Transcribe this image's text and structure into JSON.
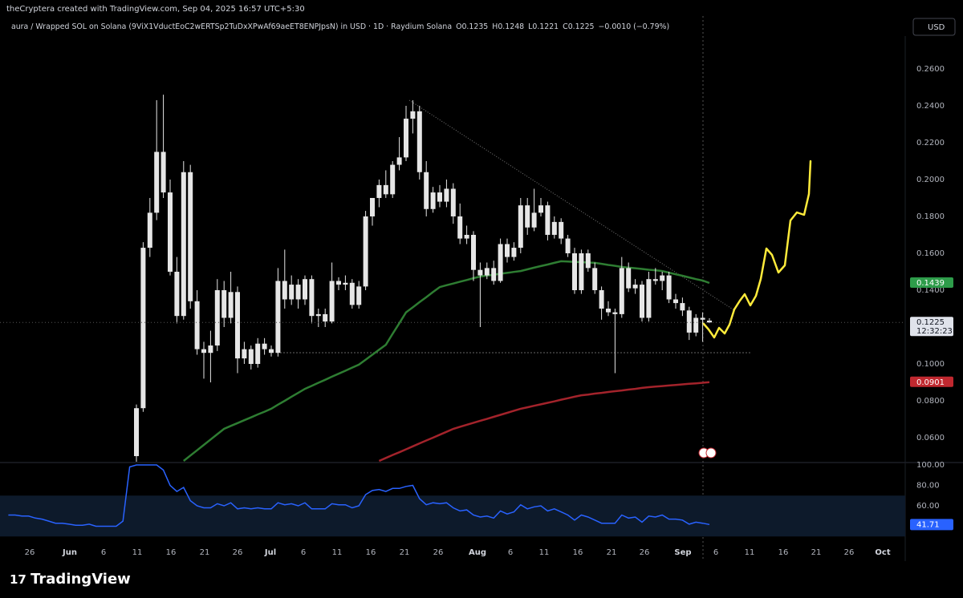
{
  "header": {
    "credit": "theCryptera created with TradingView.com, Sep 04, 2025 16:57 UTC+5:30",
    "symbol": "aura / Wrapped SOL on Solana (9ViX1VductEoC2wERTSp2TuDxXPwAf69aeET8ENPJpsN) in USD · 1D · Raydium Solana",
    "ohlc": [
      "O0.1235",
      "H0.1248",
      "L0.1221",
      "C0.1225",
      "−0.0010 (−0.79%)"
    ],
    "currency": "USD",
    "brand": "TradingView"
  },
  "chart_data": {
    "type": "candlestick",
    "color": "#e6e6e6",
    "x": [
      "May 22",
      "May 23",
      "May 24",
      "May 25",
      "May 26",
      "May 27",
      "May 28",
      "May 29",
      "May 30",
      "May 31",
      "Jun 1",
      "Jun 2",
      "Jun 3",
      "Jun 4",
      "Jun 5",
      "Jun 6",
      "Jun 7",
      "Jun 8",
      "Jun 9",
      "Jun 10",
      "Jun 11",
      "Jun 12",
      "Jun 13",
      "Jun 14",
      "Jun 15",
      "Jun 16",
      "Jun 17",
      "Jun 18",
      "Jun 19",
      "Jun 20",
      "Jun 21",
      "Jun 22",
      "Jun 23",
      "Jun 24",
      "Jun 25",
      "Jun 26",
      "Jun 27",
      "Jun 28",
      "Jun 29",
      "Jun 30",
      "Jul 1",
      "Jul 2",
      "Jul 3",
      "Jul 4",
      "Jul 5",
      "Jul 6",
      "Jul 7",
      "Jul 8",
      "Jul 9",
      "Jul 10",
      "Jul 11",
      "Jul 12",
      "Jul 13",
      "Jul 14",
      "Jul 15",
      "Jul 16",
      "Jul 17",
      "Jul 18",
      "Jul 19",
      "Jul 20",
      "Jul 21",
      "Jul 22",
      "Jul 23",
      "Jul 24",
      "Jul 25",
      "Jul 26",
      "Jul 27",
      "Jul 28",
      "Jul 29",
      "Jul 30",
      "Jul 31",
      "Aug 1",
      "Aug 2",
      "Aug 3",
      "Aug 4",
      "Aug 5",
      "Aug 6",
      "Aug 7",
      "Aug 8",
      "Aug 9",
      "Aug 10",
      "Aug 11",
      "Aug 12",
      "Aug 13",
      "Aug 14",
      "Aug 15",
      "Aug 16",
      "Aug 17",
      "Aug 18",
      "Aug 19",
      "Aug 20",
      "Aug 21",
      "Aug 22",
      "Aug 23",
      "Aug 24",
      "Aug 25",
      "Aug 26",
      "Aug 27",
      "Aug 28",
      "Aug 29",
      "Aug 30",
      "Aug 31",
      "Sep 1",
      "Sep 2",
      "Sep 3"
    ],
    "open": [
      null,
      null,
      null,
      null,
      null,
      null,
      null,
      null,
      null,
      null,
      null,
      null,
      null,
      null,
      null,
      null,
      null,
      null,
      null,
      0.05,
      0.076,
      0.163,
      0.182,
      0.215,
      0.193,
      0.15,
      0.126,
      0.204,
      0.134,
      0.108,
      0.106,
      0.11,
      0.14,
      0.125,
      0.139,
      0.103,
      0.108,
      0.1,
      0.111,
      0.108,
      0.106,
      0.145,
      0.135,
      0.143,
      0.135,
      0.146,
      0.126,
      0.127,
      0.123,
      0.145,
      0.143,
      0.144,
      0.132,
      0.142,
      0.18,
      0.19,
      0.197,
      0.192,
      0.208,
      0.212,
      0.233,
      0.237,
      0.204,
      0.184,
      0.193,
      0.188,
      0.195,
      0.18,
      0.168,
      0.17,
      0.151,
      0.148,
      0.152,
      0.145,
      0.165,
      0.158,
      0.163,
      0.186,
      0.174,
      0.182,
      0.186,
      0.17,
      0.177,
      0.168,
      0.16,
      0.14,
      0.16,
      0.152,
      0.14,
      0.13,
      0.128,
      0.127,
      0.152,
      0.141,
      0.143,
      0.125,
      0.146,
      0.145,
      0.148,
      0.135,
      0.133,
      0.129,
      0.117,
      0.125,
      0.1235
    ],
    "high": [
      null,
      null,
      null,
      null,
      null,
      null,
      null,
      null,
      null,
      null,
      null,
      null,
      null,
      null,
      null,
      null,
      null,
      null,
      null,
      0.078,
      0.166,
      0.19,
      0.243,
      0.246,
      0.2,
      0.158,
      0.21,
      0.208,
      0.14,
      0.112,
      0.118,
      0.146,
      0.145,
      0.15,
      0.142,
      0.112,
      0.11,
      0.114,
      0.114,
      0.11,
      0.152,
      0.162,
      0.148,
      0.146,
      0.148,
      0.148,
      0.13,
      0.13,
      0.155,
      0.147,
      0.148,
      0.146,
      0.145,
      0.183,
      0.19,
      0.2,
      0.205,
      0.21,
      0.223,
      0.24,
      0.243,
      0.24,
      0.21,
      0.196,
      0.197,
      0.2,
      0.198,
      0.187,
      0.175,
      0.172,
      0.155,
      0.155,
      0.156,
      0.168,
      0.168,
      0.166,
      0.19,
      0.19,
      0.195,
      0.19,
      0.188,
      0.18,
      0.179,
      0.17,
      0.163,
      0.162,
      0.162,
      0.155,
      0.142,
      0.134,
      0.13,
      0.158,
      0.155,
      0.146,
      0.145,
      0.15,
      0.152,
      0.15,
      0.15,
      0.138,
      0.136,
      0.131,
      0.127,
      0.128,
      0.1248
    ],
    "low": [
      null,
      null,
      null,
      null,
      null,
      null,
      null,
      null,
      null,
      null,
      null,
      null,
      null,
      null,
      null,
      null,
      null,
      null,
      null,
      0.046,
      0.074,
      0.158,
      0.178,
      0.19,
      0.148,
      0.122,
      0.124,
      0.13,
      0.105,
      0.092,
      0.09,
      0.107,
      0.12,
      0.122,
      0.095,
      0.1,
      0.097,
      0.098,
      0.105,
      0.104,
      0.104,
      0.13,
      0.132,
      0.13,
      0.132,
      0.122,
      0.12,
      0.12,
      0.122,
      0.14,
      0.14,
      0.13,
      0.13,
      0.14,
      0.175,
      0.185,
      0.19,
      0.19,
      0.205,
      0.21,
      0.225,
      0.2,
      0.18,
      0.182,
      0.185,
      0.185,
      0.176,
      0.165,
      0.165,
      0.145,
      0.12,
      0.146,
      0.143,
      0.144,
      0.155,
      0.156,
      0.16,
      0.17,
      0.172,
      0.18,
      0.167,
      0.168,
      0.165,
      0.158,
      0.138,
      0.138,
      0.15,
      0.138,
      0.124,
      0.126,
      0.095,
      0.125,
      0.139,
      0.138,
      0.123,
      0.123,
      0.143,
      0.14,
      0.133,
      0.13,
      0.126,
      0.113,
      0.115,
      0.112,
      0.1221
    ],
    "close": [
      null,
      null,
      null,
      null,
      null,
      null,
      null,
      null,
      null,
      null,
      null,
      null,
      null,
      null,
      null,
      null,
      null,
      null,
      null,
      0.076,
      0.163,
      0.182,
      0.215,
      0.193,
      0.15,
      0.126,
      0.204,
      0.134,
      0.108,
      0.106,
      0.11,
      0.14,
      0.125,
      0.139,
      0.103,
      0.108,
      0.1,
      0.111,
      0.108,
      0.106,
      0.145,
      0.135,
      0.143,
      0.135,
      0.146,
      0.126,
      0.127,
      0.123,
      0.145,
      0.143,
      0.144,
      0.132,
      0.142,
      0.18,
      0.19,
      0.197,
      0.192,
      0.208,
      0.212,
      0.233,
      0.237,
      0.204,
      0.184,
      0.193,
      0.188,
      0.195,
      0.18,
      0.168,
      0.17,
      0.151,
      0.148,
      0.152,
      0.145,
      0.165,
      0.158,
      0.163,
      0.186,
      0.174,
      0.182,
      0.186,
      0.17,
      0.177,
      0.168,
      0.16,
      0.14,
      0.16,
      0.152,
      0.14,
      0.13,
      0.128,
      0.127,
      0.152,
      0.141,
      0.143,
      0.125,
      0.146,
      0.145,
      0.148,
      0.135,
      0.133,
      0.129,
      0.117,
      0.125,
      0.124,
      0.1225
    ],
    "lines": [
      {
        "color": "#2e7d32",
        "values": [
          null,
          null,
          null,
          null,
          null,
          null,
          null,
          null,
          null,
          null,
          null,
          null,
          null,
          null,
          null,
          null,
          null,
          null,
          null,
          null,
          null,
          null,
          null,
          null,
          null,
          null,
          0.0474,
          0.0503,
          0.0532,
          0.0561,
          0.059,
          0.0619,
          0.0648,
          0.0664,
          0.0679,
          0.0695,
          0.071,
          0.0726,
          0.0741,
          0.0757,
          0.0779,
          0.08,
          0.0822,
          0.0843,
          0.0865,
          0.0881,
          0.0898,
          0.0914,
          0.0931,
          0.0947,
          0.0963,
          0.098,
          0.0996,
          0.1023,
          0.105,
          0.1077,
          0.1104,
          0.1163,
          0.1221,
          0.128,
          0.1307,
          0.1335,
          0.1362,
          0.139,
          0.1417,
          0.1427,
          0.1436,
          0.1446,
          0.1455,
          0.1465,
          0.1474,
          0.1479,
          0.1484,
          0.1489,
          0.1494,
          0.1499,
          0.1504,
          0.1513,
          0.1522,
          0.1531,
          0.1539,
          0.1548,
          0.1557,
          0.1555,
          0.1553,
          0.1552,
          0.155,
          0.1548,
          0.1543,
          0.1537,
          0.1532,
          0.1526,
          0.1522,
          0.1519,
          0.1515,
          0.1511,
          0.1508,
          0.1504,
          0.1495,
          0.1486,
          0.1478,
          0.1469,
          0.146,
          0.1452,
          0.1439
        ]
      },
      {
        "color": "#a3232b",
        "values": [
          null,
          null,
          null,
          null,
          null,
          null,
          null,
          null,
          null,
          null,
          null,
          null,
          null,
          null,
          null,
          null,
          null,
          null,
          null,
          null,
          null,
          null,
          null,
          null,
          null,
          null,
          null,
          null,
          null,
          null,
          null,
          null,
          null,
          null,
          null,
          null,
          null,
          null,
          null,
          null,
          null,
          null,
          null,
          null,
          null,
          null,
          null,
          null,
          null,
          null,
          null,
          null,
          null,
          null,
          null,
          0.0474,
          0.049,
          0.0506,
          0.0521,
          0.0537,
          0.0553,
          0.0569,
          0.0585,
          0.06,
          0.0616,
          0.0632,
          0.0648,
          0.0659,
          0.067,
          0.0681,
          0.0692,
          0.0702,
          0.0713,
          0.0724,
          0.0735,
          0.0746,
          0.0757,
          0.0765,
          0.0773,
          0.0781,
          0.0789,
          0.0797,
          0.0806,
          0.0814,
          0.0822,
          0.083,
          0.0834,
          0.0839,
          0.0843,
          0.0848,
          0.0852,
          0.0856,
          0.0861,
          0.0865,
          0.087,
          0.0874,
          0.0877,
          0.088,
          0.0883,
          0.0886,
          0.0889,
          0.0892,
          0.0895,
          0.0898,
          0.0901
        ]
      }
    ],
    "ylim": [
      0.0474,
      0.2778
    ],
    "yticks": [
      {
        "value": 0.06,
        "label": "0.0600"
      },
      {
        "value": 0.08,
        "label": "0.0800"
      },
      {
        "value": 0.1,
        "label": "0.1000"
      },
      {
        "value": 0.12,
        "label": "0.1200"
      },
      {
        "value": 0.14,
        "label": "0.1400"
      },
      {
        "value": 0.16,
        "label": "0.1600"
      },
      {
        "value": 0.18,
        "label": "0.1800"
      },
      {
        "value": 0.2,
        "label": "0.2000"
      },
      {
        "value": 0.22,
        "label": "0.2200"
      },
      {
        "value": 0.24,
        "label": "0.2400"
      },
      {
        "value": 0.26,
        "label": "0.2600"
      }
    ],
    "grid": false,
    "xticks": [
      "26",
      "Jun",
      "6",
      "11",
      "16",
      "21",
      "26",
      "Jul",
      "6",
      "11",
      "16",
      "21",
      "26",
      "Aug",
      "6",
      "11",
      "16",
      "21",
      "26",
      "Sep",
      "6",
      "11",
      "16",
      "21",
      "26",
      "Oct"
    ],
    "badges": [
      {
        "value": 0.1439,
        "label": "0.1439",
        "color": "#2e9c4a"
      },
      {
        "value": 0.0901,
        "label": "0.0901",
        "color": "#c0282f"
      },
      {
        "value": 0.1225,
        "label": "0.1225",
        "color": "#e0e3eb",
        "sub": "12:32:23"
      }
    ],
    "rsi": {
      "color": "#2962ff",
      "band": [
        30,
        70
      ],
      "ylim": [
        28,
        100
      ],
      "yticks": [
        {
          "value": 100,
          "label": "100.00"
        },
        {
          "value": 80,
          "label": "80.00"
        },
        {
          "value": 60,
          "label": "60.00"
        }
      ],
      "values": [
        51,
        51,
        50,
        50,
        48,
        47,
        45,
        43,
        43,
        42,
        41,
        41,
        42,
        40,
        40,
        40,
        40,
        45,
        98,
        100,
        100,
        100,
        100,
        95,
        80,
        74,
        78,
        65,
        60,
        58,
        58,
        62,
        60,
        63,
        57,
        58,
        57,
        58,
        57,
        57,
        63,
        61,
        62,
        60,
        63,
        57,
        57,
        57,
        62,
        61,
        61,
        58,
        60,
        71,
        75,
        76,
        74,
        77,
        77,
        79,
        80,
        67,
        61,
        63,
        62,
        63,
        58,
        55,
        56,
        51,
        49,
        50,
        48,
        55,
        52,
        54,
        61,
        57,
        59,
        60,
        55,
        57,
        54,
        51,
        46,
        51,
        49,
        46,
        43,
        43,
        43,
        51,
        48,
        49,
        44,
        50,
        49,
        51,
        47,
        47,
        46,
        42,
        44,
        43,
        41.71
      ],
      "badge": {
        "value": 41.71,
        "label": "41.71"
      }
    }
  }
}
